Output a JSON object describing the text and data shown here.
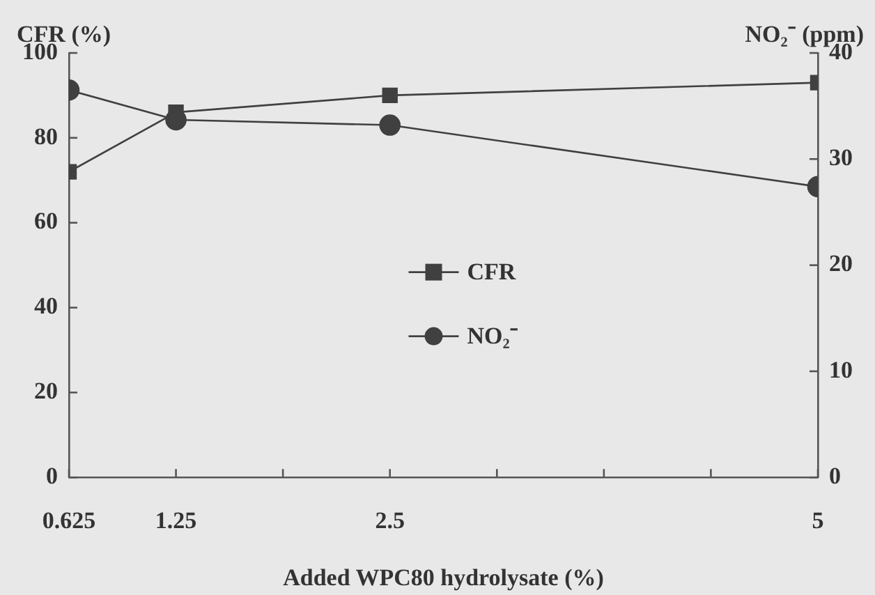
{
  "chart_data": {
    "type": "line",
    "xlabel": "Added WPC80 hydrolysate (%)",
    "ylabel": "CFR (%)",
    "y2label": "NO₂⁻ (ppm)",
    "x": [
      0.625,
      1.25,
      2.5,
      5
    ],
    "xlim": [
      0.625,
      5
    ],
    "xticks": [
      0.625,
      1.25,
      {
        "value": 1.875,
        "label": null
      },
      2.5,
      {
        "value": 3.125,
        "label": null
      },
      {
        "value": 3.75,
        "label": null
      },
      {
        "value": 4.375,
        "label": null
      },
      5
    ],
    "ylim": [
      0,
      100
    ],
    "yticks": [
      0,
      20,
      40,
      60,
      80,
      100
    ],
    "y2lim": [
      0,
      40
    ],
    "y2ticks": [
      0,
      10,
      20,
      30,
      40
    ],
    "legend": "center",
    "series": [
      {
        "name": "CFR",
        "color": "#404040",
        "marker": "square",
        "values": [
          72,
          86,
          90,
          93
        ]
      },
      {
        "name": "NO₂⁻",
        "color": "#404040",
        "marker": "circle",
        "axis": "y2",
        "values": [
          36.5,
          33.7,
          33.2,
          27.4
        ]
      }
    ]
  }
}
